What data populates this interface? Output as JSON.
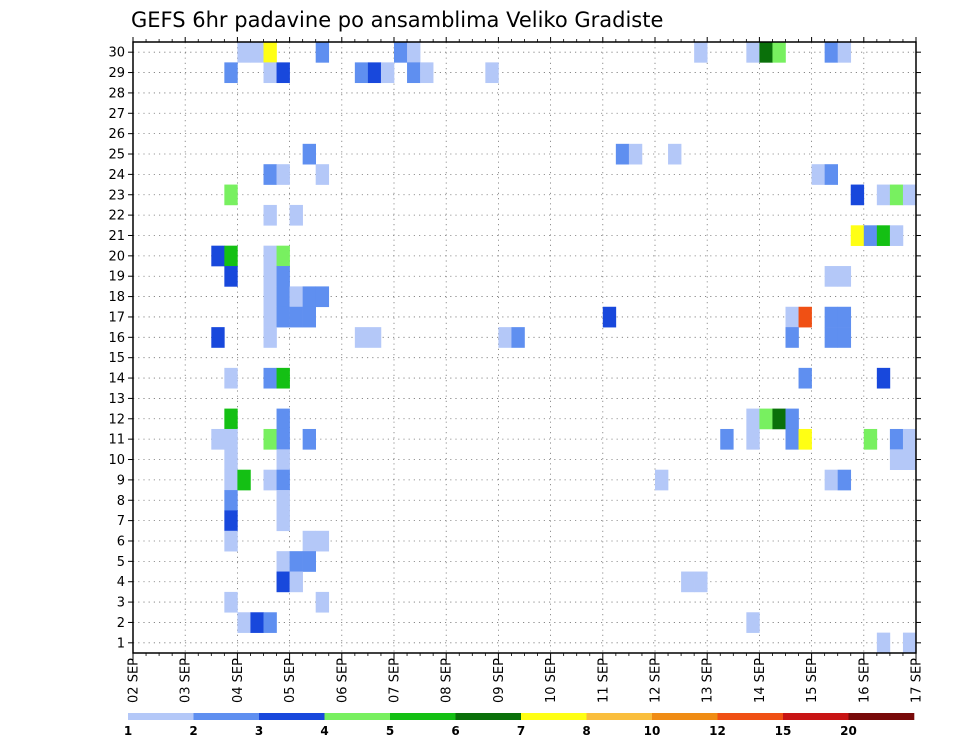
{
  "chart_data": {
    "type": "heatmap",
    "title": "GEFS 6hr padavine po ansamblima Veliko Gradiste",
    "y_categories": [
      "1",
      "2",
      "3",
      "4",
      "5",
      "6",
      "7",
      "8",
      "9",
      "10",
      "11",
      "12",
      "13",
      "14",
      "15",
      "16",
      "17",
      "18",
      "19",
      "20",
      "21",
      "22",
      "23",
      "24",
      "25",
      "26",
      "27",
      "28",
      "29",
      "30"
    ],
    "x_labels": [
      "02 SEP",
      "03 SEP",
      "04 SEP",
      "05 SEP",
      "06 SEP",
      "07 SEP",
      "08 SEP",
      "09 SEP",
      "10 SEP",
      "11 SEP",
      "12 SEP",
      "13 SEP",
      "14 SEP",
      "15 SEP",
      "16 SEP",
      "17 SEP"
    ],
    "time_range_days": [
      0,
      15
    ],
    "step_hours": 6,
    "grid": true,
    "colorbar": {
      "position": "bottom",
      "colors": [
        "#b4c8f8",
        "#5f8ff0",
        "#1848dc",
        "#78f060",
        "#14c014",
        "#0a700a",
        "#ffff14",
        "#fabe3c",
        "#f08c14",
        "#f05014",
        "#c81414",
        "#780a0a"
      ],
      "labels": [
        "1",
        "2",
        "3",
        "4",
        "5",
        "6",
        "7",
        "8",
        "10",
        "12",
        "15",
        "20"
      ]
    },
    "units_note": "",
    "cells": [
      {
        "m": 30,
        "t": 2.0,
        "v": 1
      },
      {
        "m": 30,
        "t": 2.25,
        "v": 1
      },
      {
        "m": 30,
        "t": 2.5,
        "v": 7
      },
      {
        "m": 30,
        "t": 3.5,
        "v": 2
      },
      {
        "m": 30,
        "t": 5.0,
        "v": 2
      },
      {
        "m": 30,
        "t": 5.25,
        "v": 1
      },
      {
        "m": 30,
        "t": 10.75,
        "v": 1
      },
      {
        "m": 30,
        "t": 11.75,
        "v": 1
      },
      {
        "m": 30,
        "t": 12.0,
        "v": 6
      },
      {
        "m": 30,
        "t": 12.25,
        "v": 4
      },
      {
        "m": 30,
        "t": 13.25,
        "v": 2
      },
      {
        "m": 30,
        "t": 13.5,
        "v": 1
      },
      {
        "m": 29,
        "t": 1.75,
        "v": 2
      },
      {
        "m": 29,
        "t": 2.5,
        "v": 1
      },
      {
        "m": 29,
        "t": 2.75,
        "v": 3
      },
      {
        "m": 29,
        "t": 4.25,
        "v": 2
      },
      {
        "m": 29,
        "t": 4.5,
        "v": 3
      },
      {
        "m": 29,
        "t": 4.75,
        "v": 1
      },
      {
        "m": 29,
        "t": 5.25,
        "v": 2
      },
      {
        "m": 29,
        "t": 5.5,
        "v": 1
      },
      {
        "m": 29,
        "t": 6.75,
        "v": 1
      },
      {
        "m": 25,
        "t": 3.25,
        "v": 2
      },
      {
        "m": 25,
        "t": 9.25,
        "v": 2
      },
      {
        "m": 25,
        "t": 9.5,
        "v": 1
      },
      {
        "m": 25,
        "t": 10.25,
        "v": 1
      },
      {
        "m": 24,
        "t": 2.5,
        "v": 2
      },
      {
        "m": 24,
        "t": 2.75,
        "v": 1
      },
      {
        "m": 24,
        "t": 3.5,
        "v": 1
      },
      {
        "m": 24,
        "t": 13.0,
        "v": 1
      },
      {
        "m": 24,
        "t": 13.25,
        "v": 2
      },
      {
        "m": 23,
        "t": 1.75,
        "v": 4
      },
      {
        "m": 23,
        "t": 13.75,
        "v": 3
      },
      {
        "m": 23,
        "t": 14.25,
        "v": 1
      },
      {
        "m": 23,
        "t": 14.5,
        "v": 4
      },
      {
        "m": 23,
        "t": 14.75,
        "v": 1
      },
      {
        "m": 22,
        "t": 2.5,
        "v": 1
      },
      {
        "m": 22,
        "t": 3.0,
        "v": 1
      },
      {
        "m": 21,
        "t": 13.75,
        "v": 7
      },
      {
        "m": 21,
        "t": 14.0,
        "v": 2
      },
      {
        "m": 21,
        "t": 14.25,
        "v": 5
      },
      {
        "m": 21,
        "t": 14.5,
        "v": 1
      },
      {
        "m": 20,
        "t": 1.5,
        "v": 3
      },
      {
        "m": 20,
        "t": 1.75,
        "v": 5
      },
      {
        "m": 20,
        "t": 2.5,
        "v": 1
      },
      {
        "m": 20,
        "t": 2.75,
        "v": 4
      },
      {
        "m": 19,
        "t": 1.75,
        "v": 3
      },
      {
        "m": 19,
        "t": 2.5,
        "v": 1
      },
      {
        "m": 19,
        "t": 2.75,
        "v": 2
      },
      {
        "m": 19,
        "t": 13.25,
        "v": 1
      },
      {
        "m": 19,
        "t": 13.5,
        "v": 1
      },
      {
        "m": 18,
        "t": 2.5,
        "v": 1
      },
      {
        "m": 18,
        "t": 2.75,
        "v": 2
      },
      {
        "m": 18,
        "t": 3.0,
        "v": 1
      },
      {
        "m": 18,
        "t": 3.25,
        "v": 2
      },
      {
        "m": 18,
        "t": 3.5,
        "v": 2
      },
      {
        "m": 17,
        "t": 2.5,
        "v": 1
      },
      {
        "m": 17,
        "t": 2.75,
        "v": 2
      },
      {
        "m": 17,
        "t": 3.0,
        "v": 2
      },
      {
        "m": 17,
        "t": 3.25,
        "v": 2
      },
      {
        "m": 17,
        "t": 9.0,
        "v": 3
      },
      {
        "m": 17,
        "t": 12.5,
        "v": 1
      },
      {
        "m": 17,
        "t": 12.75,
        "v": 10
      },
      {
        "m": 17,
        "t": 13.25,
        "v": 2
      },
      {
        "m": 17,
        "t": 13.5,
        "v": 2
      },
      {
        "m": 16,
        "t": 1.5,
        "v": 3
      },
      {
        "m": 16,
        "t": 2.5,
        "v": 1
      },
      {
        "m": 16,
        "t": 4.25,
        "v": 1
      },
      {
        "m": 16,
        "t": 4.5,
        "v": 1
      },
      {
        "m": 16,
        "t": 7.0,
        "v": 1
      },
      {
        "m": 16,
        "t": 7.25,
        "v": 2
      },
      {
        "m": 16,
        "t": 12.5,
        "v": 2
      },
      {
        "m": 16,
        "t": 13.25,
        "v": 2
      },
      {
        "m": 16,
        "t": 13.5,
        "v": 2
      },
      {
        "m": 14,
        "t": 1.75,
        "v": 1
      },
      {
        "m": 14,
        "t": 2.5,
        "v": 2
      },
      {
        "m": 14,
        "t": 2.75,
        "v": 5
      },
      {
        "m": 14,
        "t": 12.75,
        "v": 2
      },
      {
        "m": 14,
        "t": 14.25,
        "v": 3
      },
      {
        "m": 12,
        "t": 1.75,
        "v": 5
      },
      {
        "m": 12,
        "t": 2.75,
        "v": 2
      },
      {
        "m": 12,
        "t": 11.75,
        "v": 1
      },
      {
        "m": 12,
        "t": 12.0,
        "v": 4
      },
      {
        "m": 12,
        "t": 12.25,
        "v": 6
      },
      {
        "m": 12,
        "t": 12.5,
        "v": 2
      },
      {
        "m": 11,
        "t": 1.5,
        "v": 1
      },
      {
        "m": 11,
        "t": 1.75,
        "v": 1
      },
      {
        "m": 11,
        "t": 2.5,
        "v": 4
      },
      {
        "m": 11,
        "t": 2.75,
        "v": 2
      },
      {
        "m": 11,
        "t": 3.25,
        "v": 2
      },
      {
        "m": 11,
        "t": 11.25,
        "v": 2
      },
      {
        "m": 11,
        "t": 11.75,
        "v": 1
      },
      {
        "m": 11,
        "t": 12.5,
        "v": 2
      },
      {
        "m": 11,
        "t": 12.75,
        "v": 7
      },
      {
        "m": 11,
        "t": 14.0,
        "v": 4
      },
      {
        "m": 11,
        "t": 14.5,
        "v": 2
      },
      {
        "m": 11,
        "t": 14.75,
        "v": 1
      },
      {
        "m": 10,
        "t": 1.75,
        "v": 1
      },
      {
        "m": 10,
        "t": 2.75,
        "v": 1
      },
      {
        "m": 10,
        "t": 14.5,
        "v": 1
      },
      {
        "m": 10,
        "t": 14.75,
        "v": 1
      },
      {
        "m": 9,
        "t": 1.75,
        "v": 1
      },
      {
        "m": 9,
        "t": 2.0,
        "v": 5
      },
      {
        "m": 9,
        "t": 2.5,
        "v": 1
      },
      {
        "m": 9,
        "t": 2.75,
        "v": 2
      },
      {
        "m": 9,
        "t": 10.0,
        "v": 1
      },
      {
        "m": 9,
        "t": 13.25,
        "v": 1
      },
      {
        "m": 9,
        "t": 13.5,
        "v": 2
      },
      {
        "m": 8,
        "t": 1.75,
        "v": 2
      },
      {
        "m": 8,
        "t": 2.75,
        "v": 1
      },
      {
        "m": 7,
        "t": 1.75,
        "v": 3
      },
      {
        "m": 7,
        "t": 2.75,
        "v": 1
      },
      {
        "m": 6,
        "t": 1.75,
        "v": 1
      },
      {
        "m": 6,
        "t": 3.25,
        "v": 1
      },
      {
        "m": 6,
        "t": 3.5,
        "v": 1
      },
      {
        "m": 5,
        "t": 2.75,
        "v": 1
      },
      {
        "m": 5,
        "t": 3.0,
        "v": 2
      },
      {
        "m": 5,
        "t": 3.25,
        "v": 2
      },
      {
        "m": 4,
        "t": 2.75,
        "v": 3
      },
      {
        "m": 4,
        "t": 3.0,
        "v": 1
      },
      {
        "m": 4,
        "t": 10.5,
        "v": 1
      },
      {
        "m": 4,
        "t": 10.75,
        "v": 1
      },
      {
        "m": 3,
        "t": 1.75,
        "v": 1
      },
      {
        "m": 3,
        "t": 3.5,
        "v": 1
      },
      {
        "m": 2,
        "t": 2.0,
        "v": 1
      },
      {
        "m": 2,
        "t": 2.25,
        "v": 3
      },
      {
        "m": 2,
        "t": 2.5,
        "v": 2
      },
      {
        "m": 2,
        "t": 11.75,
        "v": 1
      },
      {
        "m": 1,
        "t": 14.25,
        "v": 1
      },
      {
        "m": 1,
        "t": 14.75,
        "v": 1
      }
    ]
  }
}
